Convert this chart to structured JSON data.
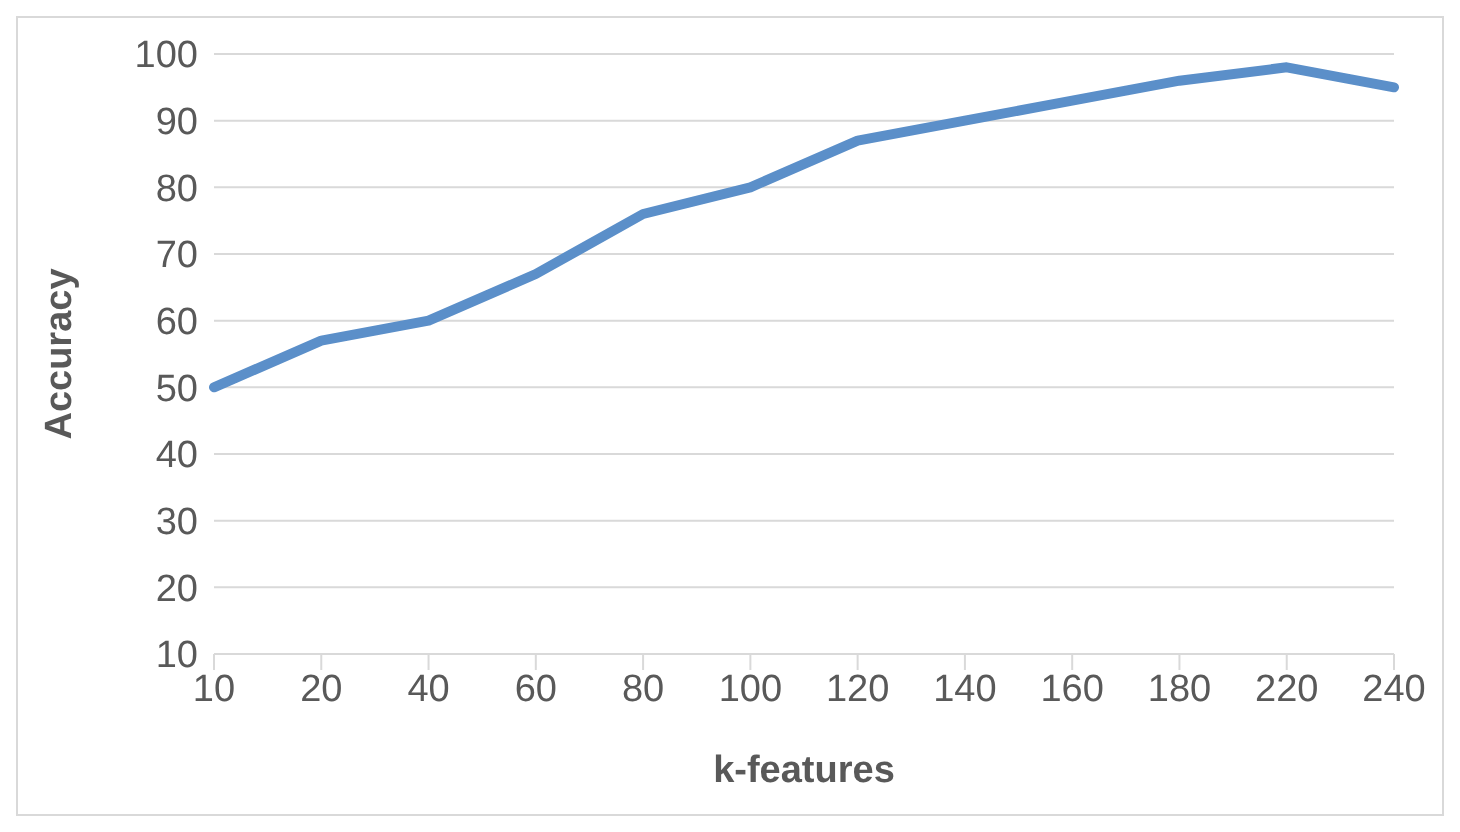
{
  "chart_data": {
    "type": "line",
    "xlabel": "k-features",
    "ylabel": "Accuracy",
    "categories": [
      "10",
      "20",
      "40",
      "60",
      "80",
      "100",
      "120",
      "140",
      "160",
      "180",
      "220",
      "240"
    ],
    "series": [
      {
        "color": "#5b8fc9",
        "values": [
          50,
          57,
          60,
          67,
          76,
          80,
          87,
          90,
          93,
          96,
          98,
          95
        ]
      }
    ],
    "ylim": [
      10,
      100
    ],
    "yticks": [
      10,
      20,
      30,
      40,
      50,
      60,
      70,
      80,
      90,
      100
    ],
    "grid": "y",
    "legend": false,
    "marker": "none",
    "line_style": "solid"
  }
}
